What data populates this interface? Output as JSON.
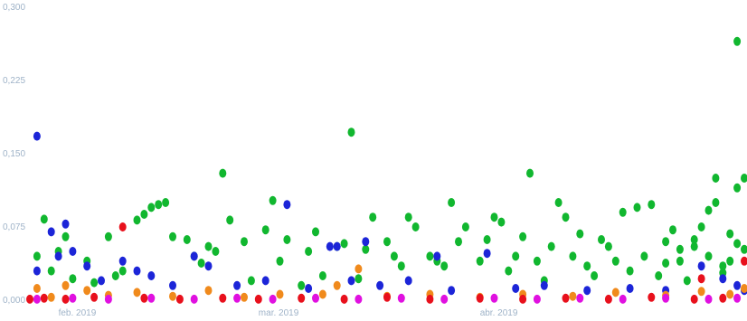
{
  "chart_data": {
    "type": "scatter",
    "title": "",
    "xlabel": "",
    "ylabel": "",
    "x_range": [
      "2019-01-28",
      "2019-05-08"
    ],
    "ylim": [
      0,
      0.3
    ],
    "grid": false,
    "legend": "none",
    "y_ticks": [
      {
        "value": 0,
        "label": "0,000"
      },
      {
        "value": 0.075,
        "label": "0,075"
      },
      {
        "value": 0.15,
        "label": "0,150"
      },
      {
        "value": 0.225,
        "label": "0,225"
      },
      {
        "value": 0.3,
        "label": "0,300"
      }
    ],
    "x_ticks": [
      {
        "value": "2019-02-01",
        "label": "feb. 2019"
      },
      {
        "value": "2019-03-01",
        "label": "mar. 2019"
      },
      {
        "value": "2019-04-01",
        "label": "abr. 2019"
      }
    ],
    "series": [
      {
        "color": "#11b72f",
        "points": [
          [
            "2019-01-29",
            0.045
          ],
          [
            "2019-01-30",
            0.083
          ],
          [
            "2019-01-31",
            0.03
          ],
          [
            "2019-02-01",
            0.05
          ],
          [
            "2019-02-02",
            0.065
          ],
          [
            "2019-02-03",
            0.022
          ],
          [
            "2019-02-05",
            0.04
          ],
          [
            "2019-02-06",
            0.018
          ],
          [
            "2019-02-08",
            0.065
          ],
          [
            "2019-02-09",
            0.025
          ],
          [
            "2019-02-10",
            0.03
          ],
          [
            "2019-02-12",
            0.082
          ],
          [
            "2019-02-13",
            0.088
          ],
          [
            "2019-02-14",
            0.095
          ],
          [
            "2019-02-15",
            0.098
          ],
          [
            "2019-02-16",
            0.1
          ],
          [
            "2019-02-17",
            0.065
          ],
          [
            "2019-02-19",
            0.062
          ],
          [
            "2019-02-20",
            0.045
          ],
          [
            "2019-02-21",
            0.038
          ],
          [
            "2019-02-22",
            0.055
          ],
          [
            "2019-02-23",
            0.05
          ],
          [
            "2019-02-24",
            0.13
          ],
          [
            "2019-02-25",
            0.082
          ],
          [
            "2019-02-27",
            0.06
          ],
          [
            "2019-02-28",
            0.02
          ],
          [
            "2019-03-02",
            0.072
          ],
          [
            "2019-03-03",
            0.102
          ],
          [
            "2019-03-04",
            0.04
          ],
          [
            "2019-03-05",
            0.062
          ],
          [
            "2019-03-07",
            0.015
          ],
          [
            "2019-03-08",
            0.05
          ],
          [
            "2019-03-09",
            0.07
          ],
          [
            "2019-03-10",
            0.025
          ],
          [
            "2019-03-12",
            0.055
          ],
          [
            "2019-03-13",
            0.058
          ],
          [
            "2019-03-14",
            0.172
          ],
          [
            "2019-03-15",
            0.022
          ],
          [
            "2019-03-16",
            0.052
          ],
          [
            "2019-03-17",
            0.085
          ],
          [
            "2019-03-19",
            0.06
          ],
          [
            "2019-03-20",
            0.045
          ],
          [
            "2019-03-21",
            0.035
          ],
          [
            "2019-03-22",
            0.085
          ],
          [
            "2019-03-23",
            0.075
          ],
          [
            "2019-03-25",
            0.045
          ],
          [
            "2019-03-26",
            0.04
          ],
          [
            "2019-03-27",
            0.035
          ],
          [
            "2019-03-28",
            0.1
          ],
          [
            "2019-03-29",
            0.06
          ],
          [
            "2019-03-30",
            0.075
          ],
          [
            "2019-04-01",
            0.04
          ],
          [
            "2019-04-02",
            0.062
          ],
          [
            "2019-04-03",
            0.085
          ],
          [
            "2019-04-04",
            0.08
          ],
          [
            "2019-04-05",
            0.03
          ],
          [
            "2019-04-06",
            0.045
          ],
          [
            "2019-04-07",
            0.065
          ],
          [
            "2019-04-08",
            0.13
          ],
          [
            "2019-04-09",
            0.04
          ],
          [
            "2019-04-10",
            0.02
          ],
          [
            "2019-04-11",
            0.055
          ],
          [
            "2019-04-12",
            0.1
          ],
          [
            "2019-04-13",
            0.085
          ],
          [
            "2019-04-14",
            0.045
          ],
          [
            "2019-04-15",
            0.068
          ],
          [
            "2019-04-16",
            0.035
          ],
          [
            "2019-04-17",
            0.025
          ],
          [
            "2019-04-18",
            0.062
          ],
          [
            "2019-04-19",
            0.055
          ],
          [
            "2019-04-20",
            0.04
          ],
          [
            "2019-04-21",
            0.09
          ],
          [
            "2019-04-22",
            0.03
          ],
          [
            "2019-04-23",
            0.095
          ],
          [
            "2019-04-24",
            0.045
          ],
          [
            "2019-04-25",
            0.098
          ],
          [
            "2019-04-26",
            0.025
          ],
          [
            "2019-04-27",
            0.06
          ],
          [
            "2019-04-28",
            0.072
          ],
          [
            "2019-04-29",
            0.04
          ],
          [
            "2019-04-30",
            0.02
          ],
          [
            "2019-05-01",
            0.055
          ],
          [
            "2019-05-02",
            0.075
          ],
          [
            "2019-05-03",
            0.045
          ],
          [
            "2019-05-04",
            0.125
          ],
          [
            "2019-05-05",
            0.035
          ],
          [
            "2019-05-06",
            0.04
          ],
          [
            "2019-05-06",
            0.068
          ],
          [
            "2019-05-04",
            0.1
          ],
          [
            "2019-05-07",
            0.058
          ],
          [
            "2019-05-07",
            0.265
          ],
          [
            "2019-05-07",
            0.115
          ],
          [
            "2019-05-03",
            0.092
          ],
          [
            "2019-05-05",
            0.028
          ],
          [
            "2019-05-01",
            0.062
          ],
          [
            "2019-04-29",
            0.052
          ],
          [
            "2019-04-27",
            0.038
          ],
          [
            "2019-05-08",
            0.052
          ],
          [
            "2019-05-08",
            0.125
          ]
        ]
      },
      {
        "color": "#1c25d8",
        "points": [
          [
            "2019-01-29",
            0.168
          ],
          [
            "2019-01-29",
            0.03
          ],
          [
            "2019-01-31",
            0.07
          ],
          [
            "2019-02-01",
            0.045
          ],
          [
            "2019-02-02",
            0.078
          ],
          [
            "2019-02-03",
            0.05
          ],
          [
            "2019-02-05",
            0.035
          ],
          [
            "2019-02-07",
            0.02
          ],
          [
            "2019-02-10",
            0.04
          ],
          [
            "2019-02-12",
            0.03
          ],
          [
            "2019-02-14",
            0.025
          ],
          [
            "2019-02-17",
            0.015
          ],
          [
            "2019-02-20",
            0.045
          ],
          [
            "2019-02-22",
            0.035
          ],
          [
            "2019-02-26",
            0.015
          ],
          [
            "2019-03-02",
            0.02
          ],
          [
            "2019-03-05",
            0.098
          ],
          [
            "2019-03-08",
            0.012
          ],
          [
            "2019-03-11",
            0.055
          ],
          [
            "2019-03-12",
            0.055
          ],
          [
            "2019-03-14",
            0.02
          ],
          [
            "2019-03-16",
            0.06
          ],
          [
            "2019-03-18",
            0.015
          ],
          [
            "2019-03-22",
            0.02
          ],
          [
            "2019-03-26",
            0.045
          ],
          [
            "2019-03-28",
            0.01
          ],
          [
            "2019-04-02",
            0.048
          ],
          [
            "2019-04-06",
            0.012
          ],
          [
            "2019-04-10",
            0.015
          ],
          [
            "2019-04-16",
            0.01
          ],
          [
            "2019-04-22",
            0.012
          ],
          [
            "2019-04-27",
            0.01
          ],
          [
            "2019-05-02",
            0.035
          ],
          [
            "2019-05-05",
            0.022
          ],
          [
            "2019-05-07",
            0.015
          ],
          [
            "2019-05-08",
            0.01
          ]
        ]
      },
      {
        "color": "#f08a1c",
        "points": [
          [
            "2019-01-29",
            0.012
          ],
          [
            "2019-01-31",
            0.003
          ],
          [
            "2019-02-02",
            0.015
          ],
          [
            "2019-02-05",
            0.01
          ],
          [
            "2019-02-08",
            0.005
          ],
          [
            "2019-02-12",
            0.008
          ],
          [
            "2019-02-17",
            0.004
          ],
          [
            "2019-02-22",
            0.01
          ],
          [
            "2019-02-27",
            0.003
          ],
          [
            "2019-03-04",
            0.006
          ],
          [
            "2019-03-10",
            0.006
          ],
          [
            "2019-03-12",
            0.015
          ],
          [
            "2019-03-15",
            0.032
          ],
          [
            "2019-03-19",
            0.004
          ],
          [
            "2019-03-25",
            0.006
          ],
          [
            "2019-04-01",
            0.003
          ],
          [
            "2019-04-07",
            0.006
          ],
          [
            "2019-04-14",
            0.004
          ],
          [
            "2019-04-20",
            0.008
          ],
          [
            "2019-04-27",
            0.005
          ],
          [
            "2019-05-02",
            0.009
          ],
          [
            "2019-05-06",
            0.006
          ],
          [
            "2019-05-08",
            0.012
          ]
        ]
      },
      {
        "color": "#e8101c",
        "points": [
          [
            "2019-01-28",
            0.001
          ],
          [
            "2019-01-30",
            0.002
          ],
          [
            "2019-02-02",
            0.001
          ],
          [
            "2019-02-06",
            0.003
          ],
          [
            "2019-02-10",
            0.075
          ],
          [
            "2019-02-13",
            0.002
          ],
          [
            "2019-02-18",
            0.001
          ],
          [
            "2019-02-24",
            0.002
          ],
          [
            "2019-03-01",
            0.001
          ],
          [
            "2019-03-07",
            0.002
          ],
          [
            "2019-03-13",
            0.001
          ],
          [
            "2019-03-19",
            0.003
          ],
          [
            "2019-03-25",
            0.001
          ],
          [
            "2019-04-01",
            0.002
          ],
          [
            "2019-04-07",
            0.001
          ],
          [
            "2019-04-13",
            0.002
          ],
          [
            "2019-04-19",
            0.001
          ],
          [
            "2019-04-25",
            0.003
          ],
          [
            "2019-05-01",
            0.001
          ],
          [
            "2019-05-02",
            0.022
          ],
          [
            "2019-05-05",
            0.002
          ],
          [
            "2019-05-08",
            0.04
          ]
        ]
      },
      {
        "color": "#e010e0",
        "points": [
          [
            "2019-01-29",
            0.001
          ],
          [
            "2019-02-03",
            0.002
          ],
          [
            "2019-02-08",
            0.001
          ],
          [
            "2019-02-14",
            0.002
          ],
          [
            "2019-02-20",
            0.001
          ],
          [
            "2019-02-26",
            0.002
          ],
          [
            "2019-03-03",
            0.001
          ],
          [
            "2019-03-09",
            0.002
          ],
          [
            "2019-03-15",
            0.001
          ],
          [
            "2019-03-21",
            0.002
          ],
          [
            "2019-03-27",
            0.001
          ],
          [
            "2019-04-03",
            0.002
          ],
          [
            "2019-04-09",
            0.001
          ],
          [
            "2019-04-15",
            0.002
          ],
          [
            "2019-04-21",
            0.001
          ],
          [
            "2019-04-27",
            0.002
          ],
          [
            "2019-05-03",
            0.001
          ],
          [
            "2019-05-07",
            0.002
          ]
        ]
      }
    ]
  }
}
